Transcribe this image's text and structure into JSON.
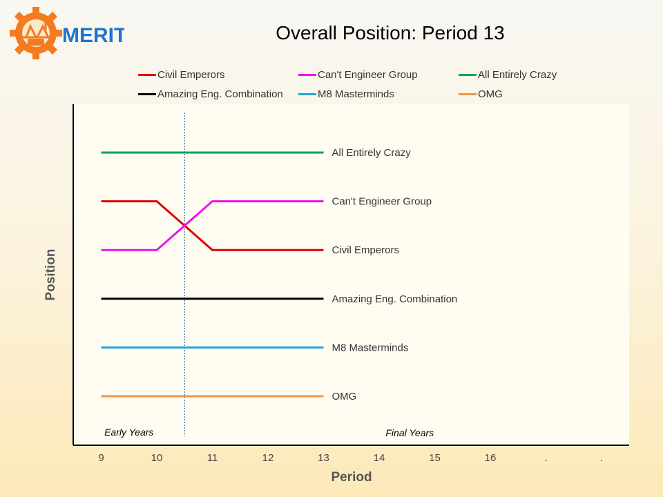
{
  "brand": {
    "name": "MERIT"
  },
  "title": "Overall Position: Period 13",
  "legend": [
    {
      "name": "Civil Emperors",
      "color": "#e00000"
    },
    {
      "name": "Can't Engineer Group",
      "color": "#ee11ee"
    },
    {
      "name": "All Entirely Crazy",
      "color": "#00a651"
    },
    {
      "name": "Amazing Eng. Combination",
      "color": "#000000"
    },
    {
      "name": "M8 Masterminds",
      "color": "#1aa7e0"
    },
    {
      "name": "OMG",
      "color": "#f0954a"
    }
  ],
  "chart_data": {
    "type": "line",
    "title": "Overall Position: Period 13",
    "xlabel": "Period",
    "ylabel": "Position",
    "x_ticks": [
      "9",
      "10",
      "11",
      "12",
      "13",
      "14",
      "15",
      "16",
      ".",
      "."
    ],
    "ylim": [
      1,
      6
    ],
    "y_inverted": true,
    "grid": false,
    "legend_position": "top",
    "series": [
      {
        "name": "Civil Emperors",
        "color": "#e00000",
        "x": [
          9,
          10,
          11,
          12,
          13
        ],
        "y": [
          2,
          2,
          3,
          3,
          3
        ],
        "end_label": "Civil Emperors"
      },
      {
        "name": "Can't Engineer Group",
        "color": "#ee11ee",
        "x": [
          9,
          10,
          11,
          12,
          13
        ],
        "y": [
          3,
          3,
          2,
          2,
          2
        ],
        "end_label": "Can't Engineer Group"
      },
      {
        "name": "All Entirely Crazy",
        "color": "#00a651",
        "x": [
          9,
          10,
          11,
          12,
          13
        ],
        "y": [
          1,
          1,
          1,
          1,
          1
        ],
        "end_label": "All Entirely Crazy"
      },
      {
        "name": "Amazing Eng. Combination",
        "color": "#000000",
        "x": [
          9,
          10,
          11,
          12,
          13
        ],
        "y": [
          4,
          4,
          4,
          4,
          4
        ],
        "end_label": "Amazing Eng. Combination"
      },
      {
        "name": "M8 Masterminds",
        "color": "#1aa7e0",
        "x": [
          9,
          10,
          11,
          12,
          13
        ],
        "y": [
          5,
          5,
          5,
          5,
          5
        ],
        "end_label": "M8 Masterminds"
      },
      {
        "name": "OMG",
        "color": "#f0954a",
        "x": [
          9,
          10,
          11,
          12,
          13
        ],
        "y": [
          6,
          6,
          6,
          6,
          6
        ],
        "end_label": "OMG"
      }
    ],
    "divider_x": 10.5,
    "annotations": [
      {
        "text": "Early Years",
        "x": 9.5
      },
      {
        "text": "Final Years",
        "x": 14.55
      }
    ]
  }
}
